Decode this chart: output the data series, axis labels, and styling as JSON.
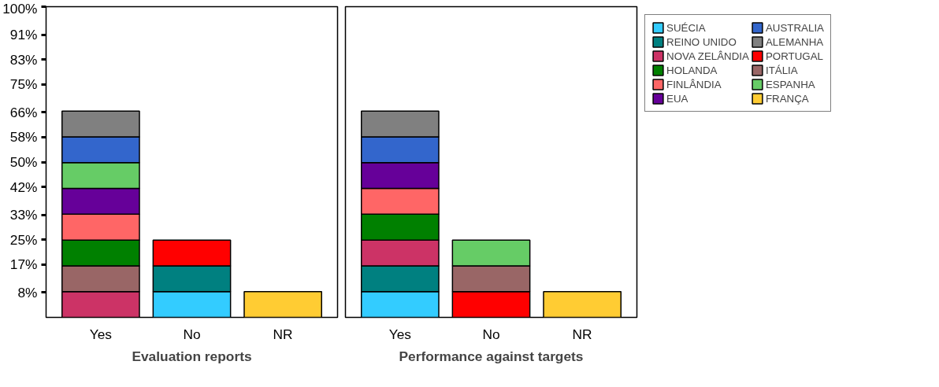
{
  "chart_data": [
    {
      "type": "bar",
      "stacked": true,
      "xlabel": "Evaluation reports",
      "categories": [
        "Yes",
        "No",
        "NR"
      ],
      "ylim": [
        0,
        100
      ],
      "yticks": [
        {
          "value": 8,
          "label": "8%"
        },
        {
          "value": 17,
          "label": "17%"
        },
        {
          "value": 25,
          "label": "25%"
        },
        {
          "value": 33,
          "label": "33%"
        },
        {
          "value": 42,
          "label": "42%"
        },
        {
          "value": 50,
          "label": "50%"
        },
        {
          "value": 58,
          "label": "58%"
        },
        {
          "value": 66,
          "label": "66%"
        },
        {
          "value": 75,
          "label": "75%"
        },
        {
          "value": 83,
          "label": "83%"
        },
        {
          "value": 91,
          "label": "91%"
        },
        {
          "value": 100,
          "label": "100%"
        }
      ],
      "grid": false,
      "series": [
        {
          "color": "#cc3366",
          "values": [
            8.3,
            null,
            null
          ]
        },
        {
          "color": "#996666",
          "values": [
            8.3,
            null,
            null
          ]
        },
        {
          "color": "#008000",
          "values": [
            8.3,
            null,
            null
          ]
        },
        {
          "color": "#ff6666",
          "values": [
            8.3,
            null,
            null
          ]
        },
        {
          "color": "#660099",
          "values": [
            8.3,
            null,
            null
          ]
        },
        {
          "color": "#66cc66",
          "values": [
            8.3,
            null,
            null
          ]
        },
        {
          "color": "#3366cc",
          "values": [
            8.3,
            null,
            null
          ]
        },
        {
          "color": "#808080",
          "values": [
            8.3,
            null,
            null
          ]
        },
        {
          "color": "#33ccff",
          "values": [
            null,
            8.3,
            null
          ]
        },
        {
          "color": "#008080",
          "values": [
            null,
            8.3,
            null
          ]
        },
        {
          "color": "#ff0000",
          "values": [
            null,
            8.3,
            null
          ]
        },
        {
          "color": "#ffcc33",
          "values": [
            null,
            null,
            8.3
          ]
        }
      ]
    },
    {
      "type": "bar",
      "stacked": true,
      "xlabel": "Performance against targets",
      "categories": [
        "Yes",
        "No",
        "NR"
      ],
      "ylim": [
        0,
        100
      ],
      "tick_labels": "x",
      "grid": false,
      "legend": "right",
      "series": [
        {
          "name": "SUÉCIA",
          "color": "#33ccff",
          "values": [
            8.3,
            null,
            null
          ]
        },
        {
          "name": "REINO UNIDO",
          "color": "#008080",
          "values": [
            8.3,
            null,
            null
          ]
        },
        {
          "name": "NOVA ZELÂNDIA",
          "color": "#cc3366",
          "values": [
            8.3,
            null,
            null
          ]
        },
        {
          "name": "HOLANDA",
          "color": "#008000",
          "values": [
            8.3,
            null,
            null
          ]
        },
        {
          "name": "FINLÂNDIA",
          "color": "#ff6666",
          "values": [
            8.3,
            null,
            null
          ]
        },
        {
          "name": "EUA",
          "color": "#660099",
          "values": [
            8.3,
            null,
            null
          ]
        },
        {
          "name": "AUSTRALIA",
          "color": "#3366cc",
          "values": [
            8.3,
            null,
            null
          ]
        },
        {
          "name": "ALEMANHA",
          "color": "#808080",
          "values": [
            8.3,
            null,
            null
          ]
        },
        {
          "name": "PORTUGAL",
          "color": "#ff0000",
          "values": [
            null,
            8.3,
            null
          ]
        },
        {
          "name": "ITÁLIA",
          "color": "#996666",
          "values": [
            null,
            8.3,
            null
          ]
        },
        {
          "name": "ESPANHA",
          "color": "#66cc66",
          "values": [
            null,
            8.3,
            null
          ]
        },
        {
          "name": "FRANÇA",
          "color": "#ffcc33",
          "values": [
            null,
            null,
            8.3
          ]
        }
      ]
    }
  ]
}
